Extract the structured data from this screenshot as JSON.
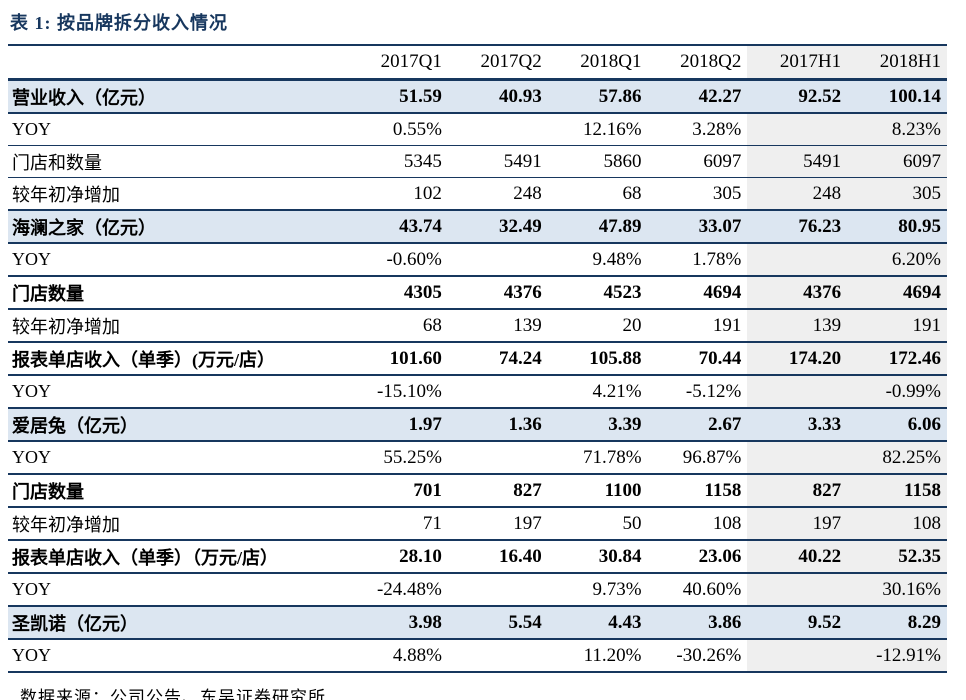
{
  "title": "表 1:  按品牌拆分收入情况",
  "source": "数据来源：公司公告、东吴证券研究所",
  "colors": {
    "accent_navy": "#17375E",
    "brand_row_highlight": "#DCE6F1",
    "h1_column_highlight": "#EFEFEF"
  },
  "table": {
    "columns": [
      "",
      "2017Q1",
      "2017Q2",
      "2018Q1",
      "2018Q2",
      "2017H1",
      "2018H1"
    ],
    "rows": [
      {
        "label": "营业收入（亿元）",
        "style": "brand",
        "values": [
          "51.59",
          "40.93",
          "57.86",
          "42.27",
          "92.52",
          "100.14"
        ]
      },
      {
        "label": "YOY",
        "style": "plain",
        "values": [
          "0.55%",
          "",
          "12.16%",
          "3.28%",
          "",
          "8.23%"
        ]
      },
      {
        "label": "门店和数量",
        "style": "plain",
        "values": [
          "5345",
          "5491",
          "5860",
          "6097",
          "5491",
          "6097"
        ]
      },
      {
        "label": "较年初净增加",
        "style": "plain",
        "values": [
          "102",
          "248",
          "68",
          "305",
          "248",
          "305"
        ]
      },
      {
        "label": "海澜之家（亿元）",
        "style": "brand",
        "values": [
          "43.74",
          "32.49",
          "47.89",
          "33.07",
          "76.23",
          "80.95"
        ]
      },
      {
        "label": "YOY",
        "style": "plain",
        "values": [
          "-0.60%",
          "",
          "9.48%",
          "1.78%",
          "",
          "6.20%"
        ]
      },
      {
        "label": "门店数量",
        "style": "bold",
        "values": [
          "4305",
          "4376",
          "4523",
          "4694",
          "4376",
          "4694"
        ]
      },
      {
        "label": "较年初净增加",
        "style": "plain",
        "values": [
          "68",
          "139",
          "20",
          "191",
          "139",
          "191"
        ]
      },
      {
        "label": "报表单店收入（单季）(万元/店）",
        "style": "bold",
        "values": [
          "101.60",
          "74.24",
          "105.88",
          "70.44",
          "174.20",
          "172.46"
        ]
      },
      {
        "label": "YOY",
        "style": "plain",
        "values": [
          "-15.10%",
          "",
          "4.21%",
          "-5.12%",
          "",
          "-0.99%"
        ]
      },
      {
        "label": "爱居兔（亿元）",
        "style": "brand",
        "values": [
          "1.97",
          "1.36",
          "3.39",
          "2.67",
          "3.33",
          "6.06"
        ]
      },
      {
        "label": "YOY",
        "style": "plain",
        "values": [
          "55.25%",
          "",
          "71.78%",
          "96.87%",
          "",
          "82.25%"
        ]
      },
      {
        "label": "门店数量",
        "style": "bold",
        "values": [
          "701",
          "827",
          "1100",
          "1158",
          "827",
          "1158"
        ]
      },
      {
        "label": "较年初净增加",
        "style": "plain",
        "values": [
          "71",
          "197",
          "50",
          "108",
          "197",
          "108"
        ]
      },
      {
        "label": "报表单店收入（单季）（万元/店）",
        "style": "bold",
        "values": [
          "28.10",
          "16.40",
          "30.84",
          "23.06",
          "40.22",
          "52.35"
        ]
      },
      {
        "label": "YOY",
        "style": "plain",
        "values": [
          "-24.48%",
          "",
          "9.73%",
          "40.60%",
          "",
          "30.16%"
        ]
      },
      {
        "label": "圣凯诺（亿元）",
        "style": "brand",
        "values": [
          "3.98",
          "5.54",
          "4.43",
          "3.86",
          "9.52",
          "8.29"
        ]
      },
      {
        "label": "YOY",
        "style": "plain",
        "values": [
          "4.88%",
          "",
          "11.20%",
          "-30.26%",
          "",
          "-12.91%"
        ]
      }
    ]
  }
}
